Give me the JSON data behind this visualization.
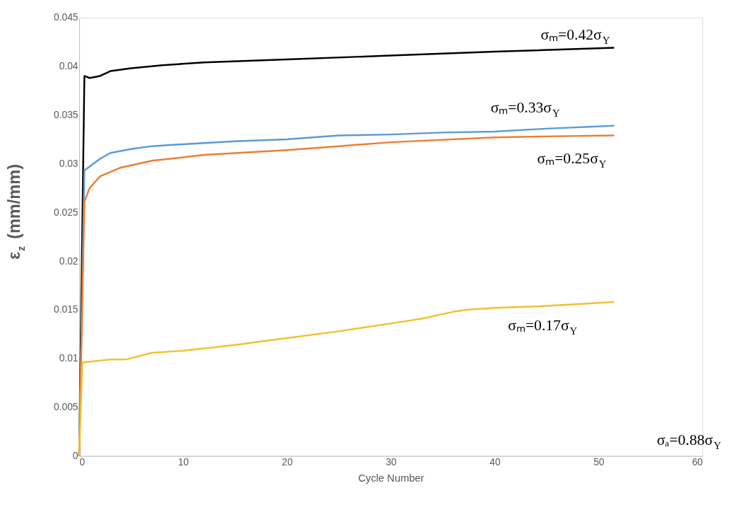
{
  "chart_data": {
    "type": "line",
    "xlabel": "Cycle Number",
    "ylabel": "ε$_{z}$ (mm/mm)",
    "xlim": [
      0,
      60
    ],
    "xticks": [
      0,
      10,
      20,
      30,
      40,
      50,
      60
    ],
    "ylim": [
      0,
      0.045
    ],
    "yticks": [
      0,
      0.005,
      0.01,
      0.015,
      0.02,
      0.025,
      0.03,
      0.035,
      0.04,
      0.045
    ],
    "grid": false,
    "legend": false,
    "marker": "none",
    "line_style": "solid",
    "series": [
      {
        "color": "#000000",
        "x": [
          0,
          0.5,
          1,
          2,
          3,
          5,
          8,
          12,
          20,
          30,
          40,
          51.5
        ],
        "values": [
          0,
          0.039,
          0.0388,
          0.039,
          0.0395,
          0.0398,
          0.0401,
          0.0404,
          0.0407,
          0.0411,
          0.0415,
          0.0419
        ]
      },
      {
        "color": "#5b9bd5",
        "x": [
          0,
          0.5,
          1,
          2,
          3,
          5,
          7,
          10,
          15,
          20,
          25,
          30,
          35,
          40,
          45,
          51.5
        ],
        "values": [
          0,
          0.0293,
          0.0297,
          0.0305,
          0.0311,
          0.0315,
          0.0318,
          0.032,
          0.0323,
          0.0325,
          0.0329,
          0.033,
          0.0332,
          0.0333,
          0.0336,
          0.0339
        ]
      },
      {
        "color": "#ed7d31",
        "x": [
          0,
          0.5,
          1,
          2,
          4,
          7,
          12,
          20,
          25,
          30,
          40,
          45,
          51.5
        ],
        "values": [
          0,
          0.0261,
          0.0275,
          0.0287,
          0.0296,
          0.0303,
          0.0309,
          0.0314,
          0.0318,
          0.0322,
          0.0327,
          0.0328,
          0.0329
        ]
      },
      {
        "color": "#f2c12e",
        "x": [
          0,
          0.3,
          3,
          4.5,
          7,
          10,
          15,
          20,
          25,
          30,
          33,
          36,
          37.3,
          40,
          45,
          51.5
        ],
        "values": [
          0,
          0.0096,
          0.0099,
          0.0099,
          0.0106,
          0.0108,
          0.0114,
          0.0121,
          0.0128,
          0.0136,
          0.0141,
          0.0148,
          0.015,
          0.0152,
          0.0154,
          0.0158
        ]
      }
    ],
    "annotations": [
      "σₘ=0.42σ$_{Y}$",
      "σₘ=0.33σ$_{Y}$",
      "σₘ=0.25σ$_{Y}$",
      "σₘ=0.17σ$_{Y}$",
      "σₐ=0.88σ$_{Y}$"
    ]
  }
}
